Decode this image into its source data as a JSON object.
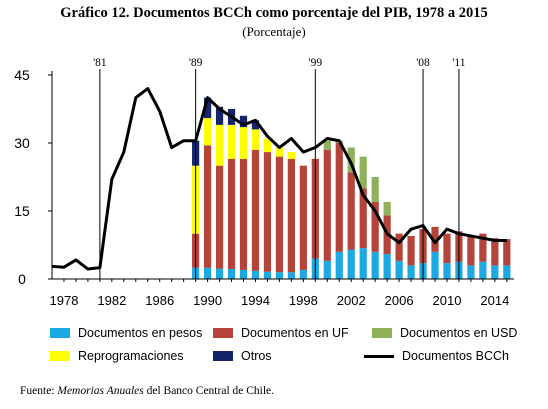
{
  "title": "Gráfico 12. Documentos BCCh como porcentaje del PIB, 1978 a 2015",
  "subtitle": "(Porcentaje)",
  "source": {
    "prefix": "Fuente: ",
    "italic": "Memorias Anuales",
    "suffix": " del Banco Central de Chile."
  },
  "legend": [
    {
      "label": "Documentos en pesos",
      "color": "#1CA9E1",
      "kind": "box"
    },
    {
      "label": "Documentos en UF",
      "color": "#B4443A",
      "kind": "box"
    },
    {
      "label": "Documentos en USD",
      "color": "#8FB15C",
      "kind": "box"
    },
    {
      "label": "Reprogramaciones",
      "color": "#FFFF00",
      "kind": "box"
    },
    {
      "label": "Otros",
      "color": "#13246B",
      "kind": "box"
    },
    {
      "label": "Documentos BCCh",
      "color": "#000000",
      "kind": "line"
    }
  ],
  "chart_data": {
    "type": "bar",
    "title": "Gráfico 12. Documentos BCCh como porcentaje del PIB, 1978 a 2015",
    "subtitle": "(Porcentaje)",
    "xlabel": "",
    "ylabel": "",
    "xlim": [
      1977,
      2015.6
    ],
    "ylim": [
      0,
      45
    ],
    "y_ticks": [
      0,
      15,
      30,
      45
    ],
    "x_ticks": [
      1978,
      1982,
      1986,
      1990,
      1994,
      1998,
      2002,
      2006,
      2010,
      2014
    ],
    "grid": false,
    "legend_position": "bottom",
    "stacked": true,
    "vertical_markers": [
      {
        "year": 1981,
        "label": "'81"
      },
      {
        "year": 1989,
        "label": "'89"
      },
      {
        "year": 1999,
        "label": "'99"
      },
      {
        "year": 2008,
        "label": "'08"
      },
      {
        "year": 2011,
        "label": "'11"
      }
    ],
    "categories": [
      1989,
      1990,
      1991,
      1992,
      1993,
      1994,
      1995,
      1996,
      1997,
      1998,
      1999,
      2000,
      2001,
      2002,
      2003,
      2004,
      2005,
      2006,
      2007,
      2008,
      2009,
      2010,
      2011,
      2012,
      2013,
      2014,
      2015
    ],
    "series": [
      {
        "name": "Documentos en pesos",
        "color": "#1CA9E1",
        "values": [
          2.5,
          2.5,
          2.3,
          2.2,
          2.0,
          1.8,
          1.6,
          1.5,
          1.5,
          2.0,
          4.5,
          4.0,
          6.0,
          6.5,
          6.8,
          6.0,
          5.5,
          4.0,
          3.0,
          3.5,
          6.0,
          3.5,
          3.8,
          3.0,
          3.8,
          3.0,
          3.0
        ]
      },
      {
        "name": "Documentos en UF",
        "color": "#B4443A",
        "values": [
          7.5,
          27.0,
          22.7,
          24.3,
          24.5,
          26.7,
          26.4,
          25.5,
          25.0,
          23.0,
          22.0,
          24.5,
          24.0,
          17.0,
          13.2,
          11.0,
          8.5,
          6.0,
          6.5,
          7.5,
          5.5,
          6.5,
          6.7,
          6.5,
          6.2,
          6.0,
          5.8
        ]
      },
      {
        "name": "Documentos en USD",
        "color": "#8FB15C",
        "values": [
          0,
          0,
          0,
          0,
          0,
          0,
          0,
          0,
          0,
          0,
          0,
          2.0,
          0.5,
          5.5,
          7.0,
          5.5,
          3.0,
          0,
          0,
          0,
          0,
          0,
          0,
          0,
          0,
          0,
          0
        ]
      },
      {
        "name": "Reprogramaciones",
        "color": "#FFFF00",
        "values": [
          15.0,
          6.0,
          9.0,
          7.5,
          7.0,
          4.5,
          3.0,
          2.0,
          1.5,
          0,
          0,
          0,
          0,
          0,
          0,
          0,
          0,
          0,
          0,
          0,
          0,
          0,
          0,
          0,
          0,
          0,
          0
        ]
      },
      {
        "name": "Otros",
        "color": "#13246B",
        "values": [
          5.5,
          4.5,
          4.0,
          3.5,
          2.5,
          2.0,
          0,
          0,
          0,
          0,
          0,
          0,
          0,
          0,
          0,
          0,
          0,
          0,
          0,
          0,
          0,
          0,
          0,
          0,
          0,
          0,
          0
        ]
      }
    ],
    "line": {
      "name": "Documentos BCCh",
      "color": "#000000",
      "x": [
        1977,
        1978,
        1979,
        1980,
        1981,
        1982,
        1983,
        1984,
        1985,
        1986,
        1987,
        1988,
        1989,
        1990,
        1991,
        1992,
        1993,
        1994,
        1995,
        1996,
        1997,
        1998,
        1999,
        2000,
        2001,
        2002,
        2003,
        2004,
        2005,
        2006,
        2007,
        2008,
        2009,
        2010,
        2011,
        2012,
        2013,
        2014,
        2015
      ],
      "y": [
        2.8,
        2.6,
        4.2,
        2.2,
        2.5,
        22.0,
        28.0,
        40.0,
        42.0,
        37.0,
        29.0,
        30.5,
        30.5,
        40.0,
        37.5,
        35.8,
        34.0,
        35.0,
        31.5,
        29.0,
        31.0,
        28.0,
        29.0,
        31.0,
        30.5,
        25.5,
        18.5,
        15.0,
        10.0,
        8.0,
        11.0,
        11.8,
        8.0,
        11.0,
        10.0,
        9.5,
        9.0,
        8.5,
        8.5
      ]
    }
  }
}
